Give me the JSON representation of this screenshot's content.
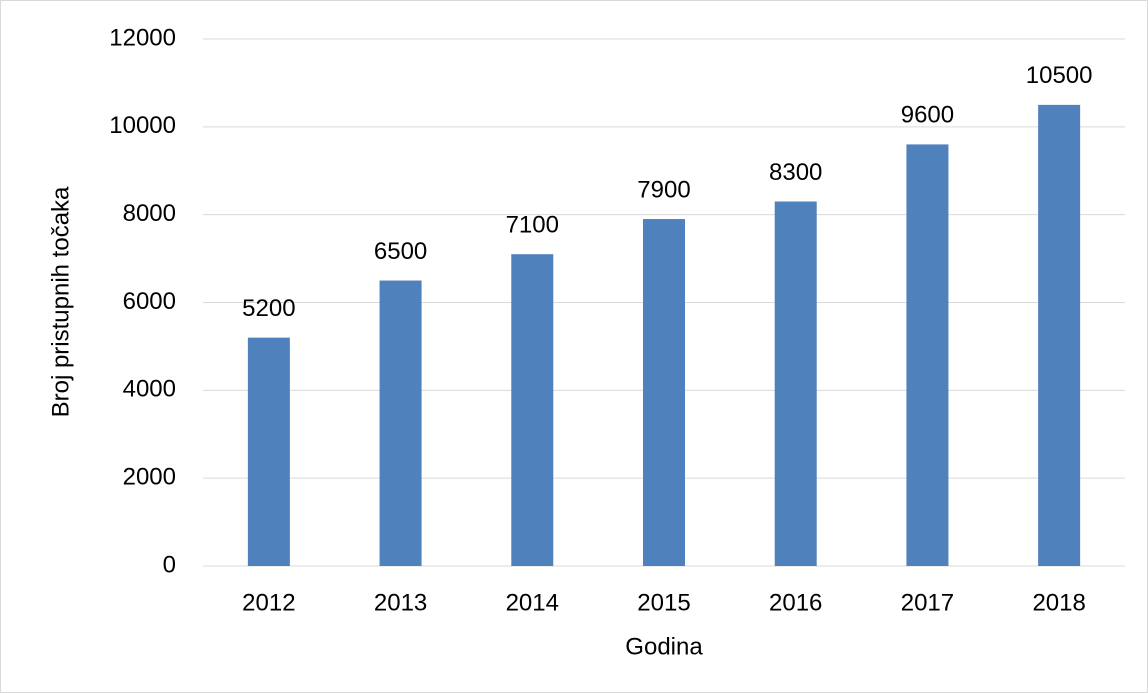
{
  "chart_data": {
    "type": "bar",
    "categories": [
      "2012",
      "2013",
      "2014",
      "2015",
      "2016",
      "2017",
      "2018"
    ],
    "values": [
      5200,
      6500,
      7100,
      7900,
      8300,
      9600,
      10500
    ],
    "color": "#4f81bd",
    "ylim": [
      0,
      12000
    ],
    "yticks": [
      0,
      2000,
      4000,
      6000,
      8000,
      10000,
      12000
    ],
    "grid": true,
    "xlabel": "Godina",
    "ylabel": "Broj pristupnih točaka"
  }
}
